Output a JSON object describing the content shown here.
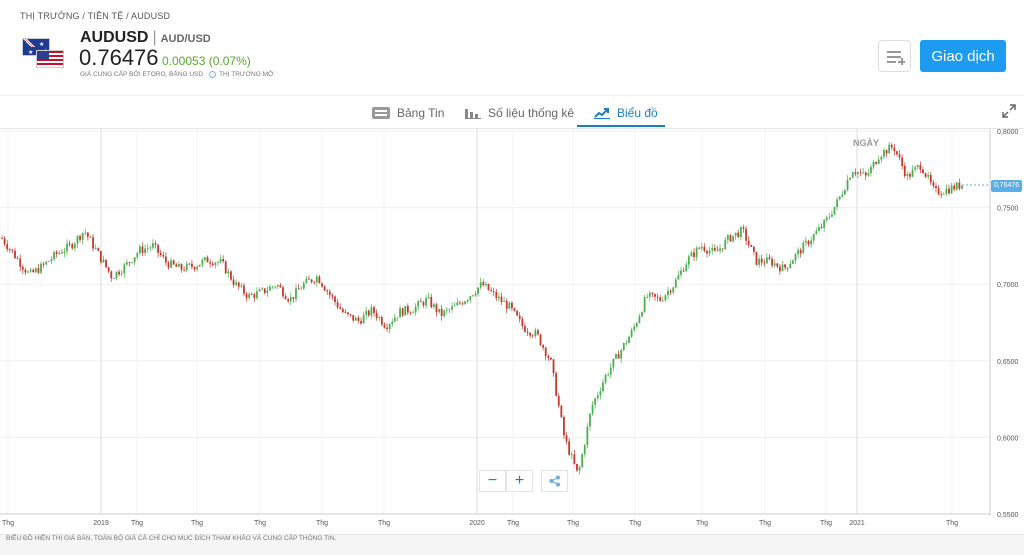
{
  "breadcrumb": "THỊ TRƯỜNG / TIỀN TỆ / AUDUSD",
  "instrument": {
    "symbol": "AUDUSD",
    "pair": "AUD/USD",
    "price": "0.76476",
    "change": "0.00053 (0.07%)",
    "provider": "GIÁ CUNG CẤP BỞI ETORO, BẰNG USD",
    "market_status": "THỊ TRƯỜNG MỞ"
  },
  "actions": {
    "trade_label": "Giao dịch",
    "watchlist_icon": "add-to-list-icon"
  },
  "tabs": [
    {
      "label": "Bảng Tin",
      "icon": "news-icon"
    },
    {
      "label": "Số liệu thống kê",
      "icon": "stats-icon"
    },
    {
      "label": "Biểu đồ",
      "icon": "chart-icon",
      "active": true
    }
  ],
  "chart": {
    "timeframe_label": "NGÀY",
    "current_price_tag": "0,76476",
    "zoom_out": "−",
    "zoom_in": "+",
    "share_icon": "share-icon",
    "expand_icon": "expand-icon"
  },
  "footer_note": "BIỂU ĐỒ HIỂN THỊ GIÁ BÁN. TOÀN BỘ GIÁ CẢ CHỈ CHO MỤC ĐÍCH THAM KHẢO VÀ CUNG CẤP THÔNG TIN.",
  "chart_data": {
    "type": "candlestick",
    "y_ticks": [
      "0,8000",
      "0,7500",
      "0,7000",
      "0,6500",
      "0,6000",
      "0,5500"
    ],
    "ylim": [
      0.55,
      0.8
    ],
    "x_ticks": [
      "Thg",
      "2019",
      "Thg",
      "Thg",
      "Thg",
      "Thg",
      "Thg",
      "2020",
      "Thg",
      "Thg",
      "Thg",
      "Thg",
      "Thg",
      "Thg",
      "2021",
      "Thg"
    ],
    "close_path": [
      0.73,
      0.718,
      0.706,
      0.712,
      0.72,
      0.725,
      0.735,
      0.72,
      0.705,
      0.712,
      0.722,
      0.725,
      0.714,
      0.71,
      0.712,
      0.716,
      0.714,
      0.7,
      0.692,
      0.695,
      0.7,
      0.69,
      0.7,
      0.705,
      0.692,
      0.68,
      0.676,
      0.683,
      0.673,
      0.682,
      0.684,
      0.69,
      0.68,
      0.685,
      0.692,
      0.7,
      0.692,
      0.685,
      0.672,
      0.667,
      0.65,
      0.6,
      0.575,
      0.62,
      0.64,
      0.655,
      0.67,
      0.692,
      0.69,
      0.7,
      0.716,
      0.725,
      0.72,
      0.73,
      0.735,
      0.715,
      0.715,
      0.71,
      0.72,
      0.73,
      0.74,
      0.755,
      0.775,
      0.77,
      0.785,
      0.79,
      0.77,
      0.778,
      0.76,
      0.762,
      0.765
    ],
    "current": 0.76476
  }
}
